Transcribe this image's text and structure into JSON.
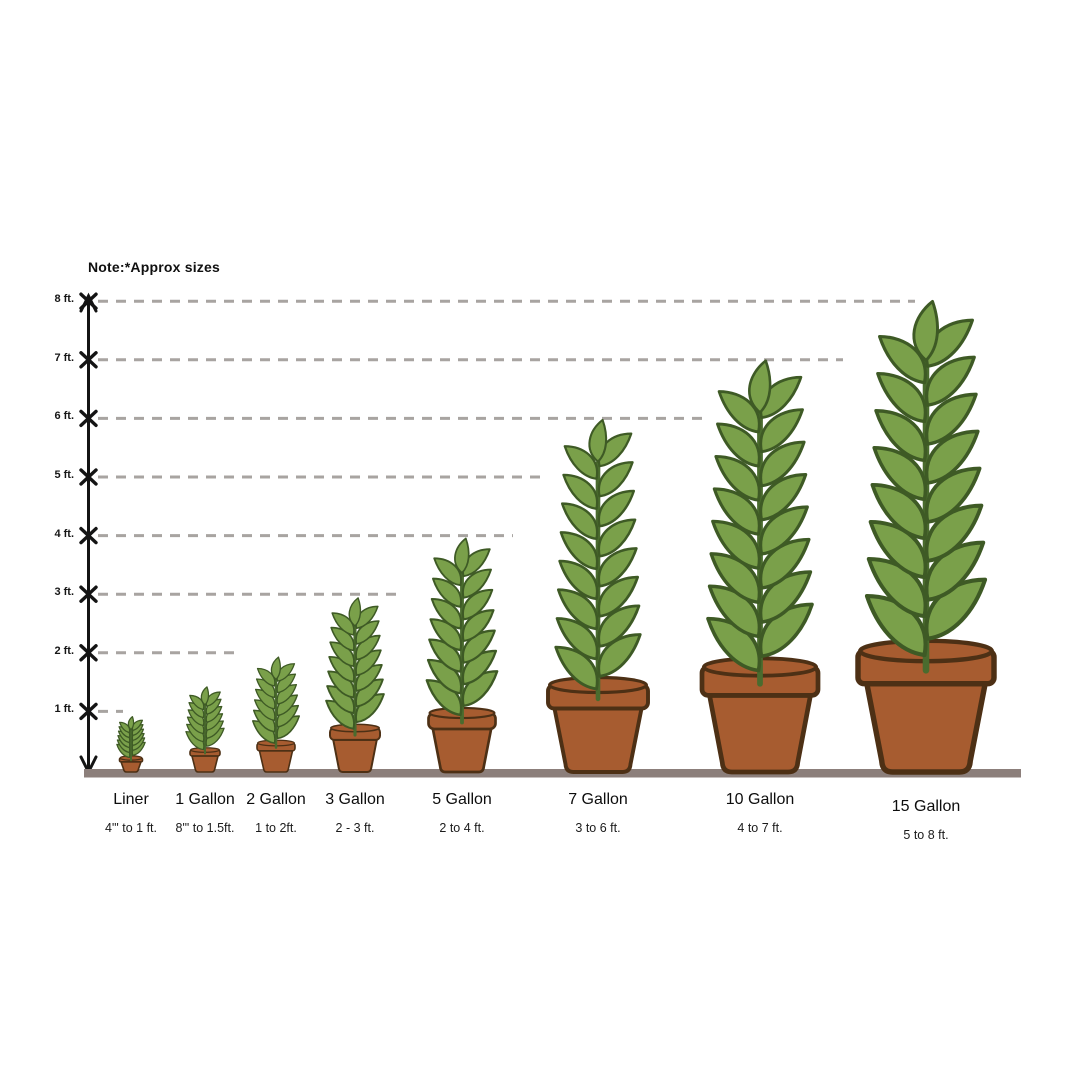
{
  "note": "Note:*Approx sizes",
  "colors": {
    "leaf_fill": "#7aa04a",
    "leaf_outline": "#3e5a25",
    "stem": "#4a6b2e",
    "pot_fill": "#a75c30",
    "pot_outline": "#4d3015",
    "ground": "#8c7f7b",
    "dash": "#a8a4a1",
    "axis": "#141414"
  },
  "chart_data": {
    "type": "pictogram",
    "categories": [
      "Liner",
      "1 Gallon",
      "2 Gallon",
      "3 Gallon",
      "5 Gallon",
      "7 Gallon",
      "10 Gallon",
      "15 Gallon"
    ],
    "height_ranges": [
      "4\"' to 1 ft.",
      "8\"' to 1.5ft.",
      "1 to 2ft.",
      "2 - 3 ft.",
      "2 to 4 ft.",
      "3 to 6 ft.",
      "4 to 7 ft.",
      "5 to 8 ft."
    ],
    "max_height_ft": [
      1,
      1.5,
      2,
      3,
      4,
      6,
      7,
      8
    ],
    "y_axis": {
      "tick_labels": [
        "1 ft.",
        "2 ft.",
        "3 ft.",
        "4 ft.",
        "5 ft.",
        "6 ft.",
        "7 ft.",
        "8 ft."
      ],
      "range_ft": [
        0,
        8
      ],
      "gridlines": "dashed"
    }
  }
}
